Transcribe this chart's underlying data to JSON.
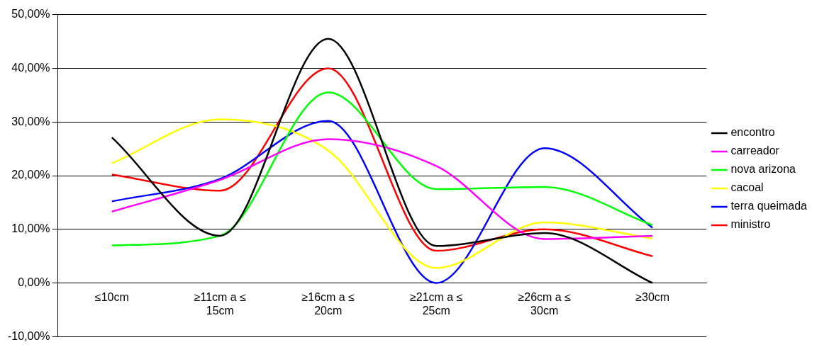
{
  "chart_data": {
    "type": "line",
    "categories": [
      "≤10cm",
      "≥11cm a ≤ 15cm",
      "≥16cm a ≤ 20cm",
      "≥21cm a ≤ 25cm",
      "≥26cm a ≤ 30cm",
      "≥30cm"
    ],
    "series": [
      {
        "name": "encontro",
        "color": "#000000",
        "values": [
          27.1,
          8.8,
          45.5,
          6.9,
          9.3,
          0
        ]
      },
      {
        "name": "carreador",
        "color": "#ff00ff",
        "values": [
          13.3,
          19.2,
          26.8,
          21.8,
          8.2,
          8.8
        ]
      },
      {
        "name": "nova arizona",
        "color": "#00ff00",
        "values": [
          7,
          8.8,
          35.5,
          17.5,
          17.9,
          10.8
        ]
      },
      {
        "name": "cacoal",
        "color": "#ffff00",
        "values": [
          22.3,
          30.5,
          24.7,
          2.8,
          11.3,
          8.3
        ]
      },
      {
        "name": "terra queimada",
        "color": "#0000ff",
        "values": [
          15.2,
          19.4,
          30.2,
          0,
          25.1,
          10.3
        ]
      },
      {
        "name": "ministro",
        "color": "#ff0000",
        "values": [
          20.2,
          17.2,
          40,
          6,
          10,
          5
        ]
      }
    ],
    "ylim": [
      -10,
      50
    ],
    "yticks": [
      {
        "value": -10,
        "label": "-10,00%"
      },
      {
        "value": 0,
        "label": "0,00%"
      },
      {
        "value": 10,
        "label": "10,00%"
      },
      {
        "value": 20,
        "label": "20,00%"
      },
      {
        "value": 30,
        "label": "30,00%"
      },
      {
        "value": 40,
        "label": "40,00%"
      },
      {
        "value": 50,
        "label": "50,00%"
      }
    ],
    "grid": "y",
    "legend": "right",
    "marker": "none",
    "line_style": "solid"
  }
}
